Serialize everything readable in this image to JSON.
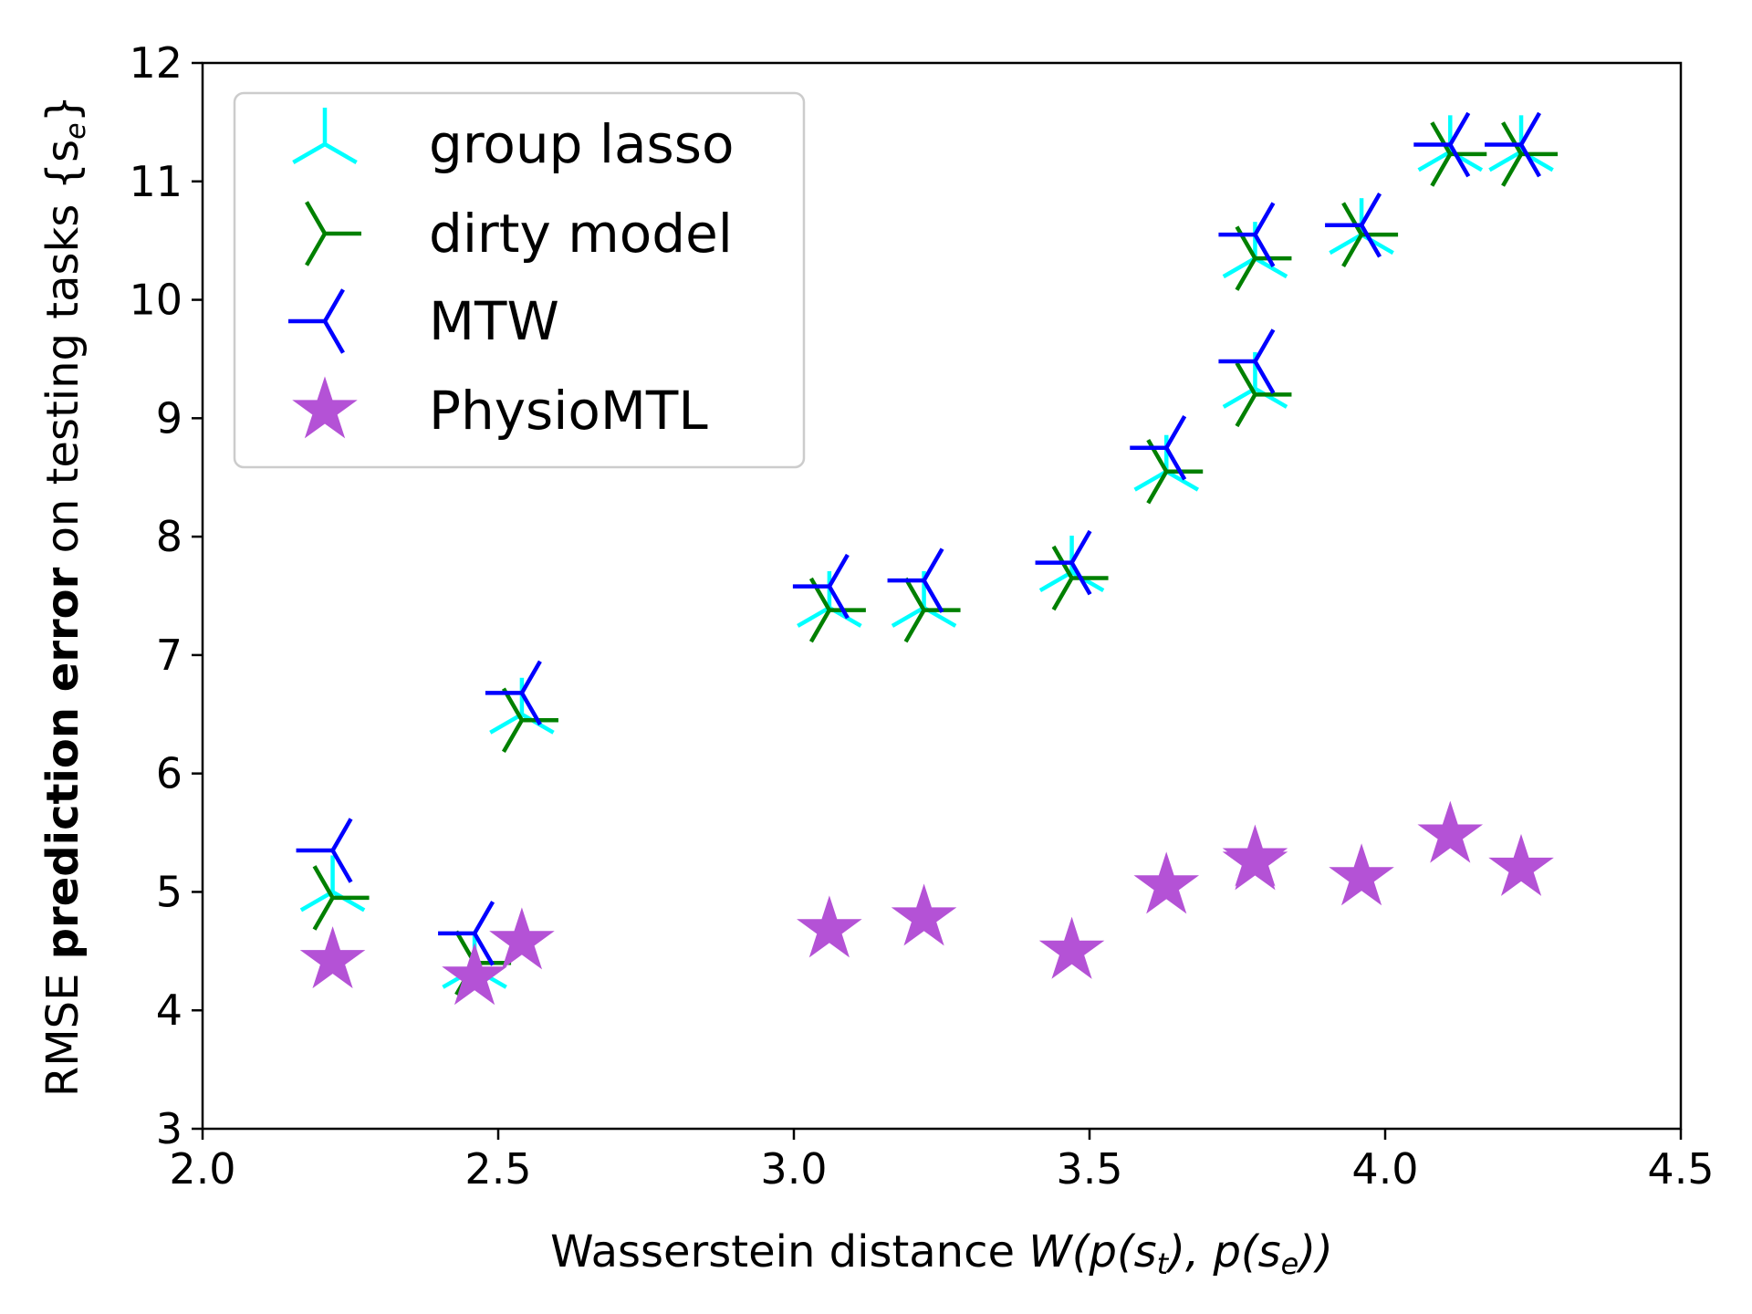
{
  "chart_data": {
    "type": "scatter",
    "title": "",
    "xlabel": {
      "prefix": "Wasserstein distance ",
      "math": "W(p(s",
      "sub_t": "t",
      "mid": "), p(s",
      "sub_e": "e",
      "suffix": "))"
    },
    "ylabel": {
      "pre": "RMSE ",
      "bold": "prediction error",
      "post": " on testing tasks {s",
      "sub": "e",
      "close": "}"
    },
    "xlim": [
      2.0,
      4.5
    ],
    "ylim": [
      3,
      12
    ],
    "xticks": [
      "2.0",
      "2.5",
      "3.0",
      "3.5",
      "4.0",
      "4.5"
    ],
    "yticks": [
      "3",
      "4",
      "5",
      "6",
      "7",
      "8",
      "9",
      "10",
      "11",
      "12"
    ],
    "grid": false,
    "legend_position": "upper-left",
    "x": [
      2.22,
      2.46,
      2.54,
      3.06,
      3.22,
      3.47,
      3.63,
      3.78,
      3.78,
      3.96,
      4.11,
      4.23
    ],
    "series": [
      {
        "name": "group lasso",
        "color": "#00ffff",
        "marker": "tri-down",
        "values": [
          5.0,
          4.35,
          6.5,
          7.4,
          7.4,
          7.7,
          8.55,
          9.25,
          10.35,
          10.55,
          11.25,
          11.25
        ]
      },
      {
        "name": "dirty model",
        "color": "#008000",
        "marker": "tri-left",
        "values": [
          4.95,
          4.4,
          6.45,
          7.38,
          7.38,
          7.65,
          8.55,
          9.2,
          10.35,
          10.55,
          11.23,
          11.23
        ]
      },
      {
        "name": "MTW",
        "color": "#0000ff",
        "marker": "tri-right",
        "values": [
          5.35,
          4.65,
          6.68,
          7.58,
          7.63,
          7.78,
          8.75,
          9.48,
          10.55,
          10.63,
          11.31,
          11.31
        ]
      },
      {
        "name": "PhysioMTL",
        "color": "#b452d6",
        "marker": "star",
        "values": [
          4.42,
          4.28,
          4.58,
          4.68,
          4.78,
          4.5,
          5.05,
          5.28,
          5.25,
          5.12,
          5.48,
          5.2
        ]
      }
    ]
  }
}
